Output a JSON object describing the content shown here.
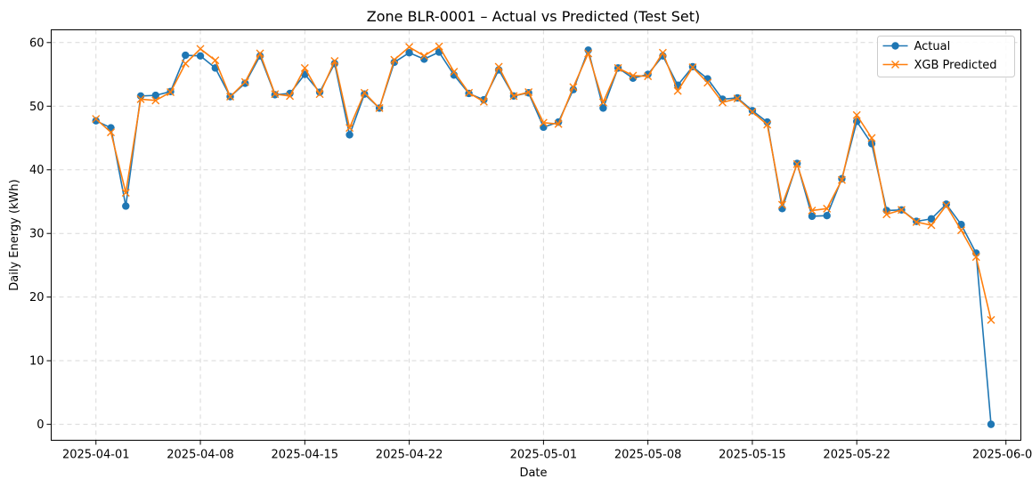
{
  "chart_data": {
    "type": "line",
    "title": "Zone BLR-0001 – Actual vs Predicted (Test Set)",
    "xlabel": "Date",
    "ylabel": "Daily Energy (kWh)",
    "x_start": "2025-04-01",
    "x_end": "2025-05-31",
    "xlim": [
      "2025-03-29",
      "2025-06-02"
    ],
    "ylim": [
      -2.5,
      62
    ],
    "x_ticks": [
      "2025-04-01",
      "2025-04-08",
      "2025-04-15",
      "2025-04-22",
      "2025-05-01",
      "2025-05-08",
      "2025-05-15",
      "2025-05-22",
      "2025-06-01"
    ],
    "y_ticks": [
      0,
      10,
      20,
      30,
      40,
      50,
      60
    ],
    "grid": true,
    "legend_position": "top-right",
    "series": [
      {
        "name": "Actual",
        "color": "#1f77b4",
        "marker": "circle",
        "values": [
          47.7,
          46.6,
          34.3,
          51.6,
          51.7,
          52.3,
          58.0,
          57.9,
          56.0,
          51.5,
          53.6,
          57.9,
          51.8,
          52.0,
          55.0,
          52.2,
          56.7,
          45.5,
          51.9,
          49.7,
          56.9,
          58.4,
          57.4,
          58.5,
          54.9,
          52.0,
          51.0,
          55.7,
          51.6,
          52.1,
          46.7,
          47.5,
          52.6,
          58.8,
          49.7,
          56.0,
          54.4,
          55.0,
          57.9,
          53.3,
          56.2,
          54.3,
          51.1,
          51.3,
          49.3,
          47.5,
          33.9,
          41.0,
          32.7,
          32.8,
          38.6,
          47.6,
          44.1,
          33.6,
          33.7,
          31.9,
          32.3,
          34.6,
          31.4,
          26.9,
          0.0
        ]
      },
      {
        "name": "XGB Predicted",
        "color": "#ff7f0e",
        "marker": "x",
        "values": [
          48.0,
          45.9,
          36.4,
          51.1,
          50.9,
          52.2,
          56.7,
          59.0,
          57.2,
          51.5,
          53.8,
          58.3,
          51.9,
          51.6,
          56.0,
          51.9,
          57.1,
          46.6,
          52.1,
          49.7,
          57.3,
          59.3,
          57.9,
          59.4,
          55.4,
          52.1,
          50.7,
          56.2,
          51.6,
          52.2,
          47.4,
          47.2,
          53.0,
          58.3,
          50.6,
          56.0,
          54.8,
          54.7,
          58.4,
          52.4,
          56.1,
          53.7,
          50.6,
          51.2,
          49.1,
          47.1,
          34.5,
          40.9,
          33.6,
          33.9,
          38.4,
          48.6,
          45.0,
          33.0,
          33.7,
          31.8,
          31.3,
          34.4,
          30.5,
          26.3,
          16.4
        ]
      }
    ]
  }
}
